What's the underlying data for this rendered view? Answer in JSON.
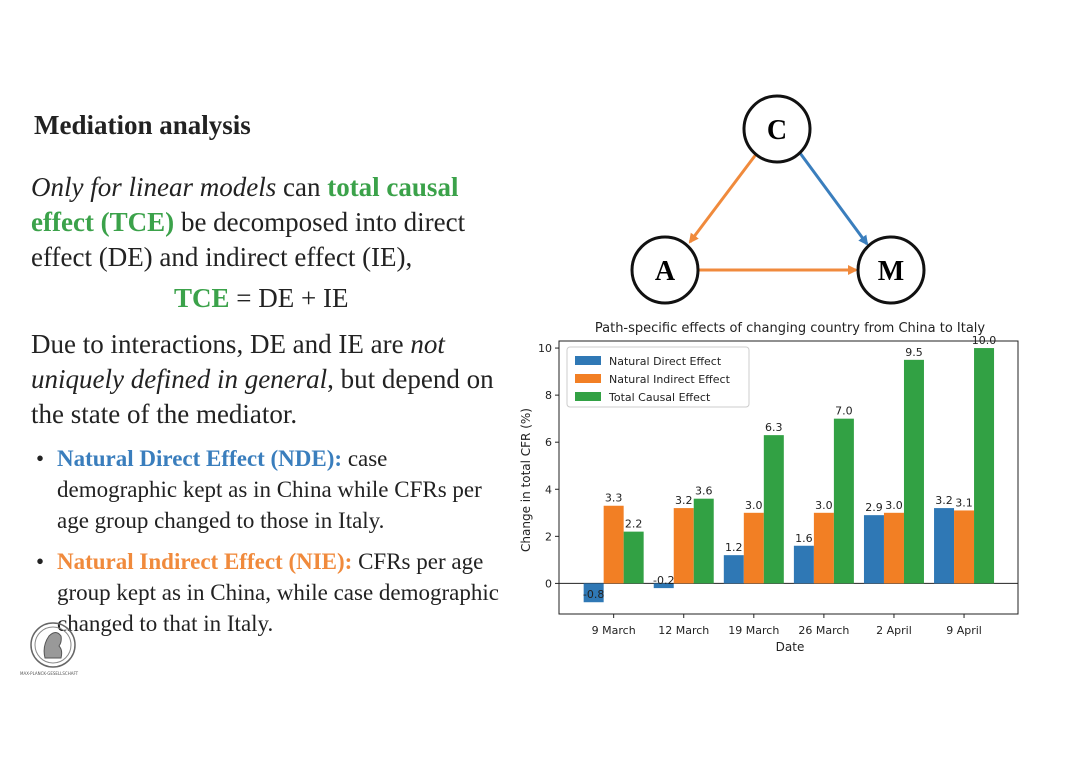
{
  "slide": {
    "title": "Mediation analysis",
    "intro": {
      "italic": "Only for linear models",
      "t1": " can ",
      "tce_label": "total causal effect (TCE)",
      "t2": " be decomposed into direct effect (DE) and indirect effect (IE),"
    },
    "formula": {
      "lhs": "TCE",
      "rhs": " = DE + IE"
    },
    "para2": {
      "t1": "Due to interactions, DE and IE are ",
      "italic": "not uniquely defined in general",
      "t2": ", but depend on the state of the mediator."
    },
    "bullets": [
      {
        "label": "Natural Direct Effect (NDE):",
        "text": " case demographic kept as in China while CFRs per age group changed to those in Italy."
      },
      {
        "label": "Natural Indirect Effect (NIE):",
        "text": " CFRs per age group kept as in China, while case demographic changed to that in Italy."
      }
    ],
    "bullet_char": "•",
    "logo_caption": "MAX-PLANCK-GESELLSCHAFT"
  },
  "diagram": {
    "nodes": {
      "c": "C",
      "a": "A",
      "m": "M"
    },
    "colors": {
      "orange": "#f08a3c",
      "blue": "#3a7ebd"
    }
  },
  "chart_data": {
    "type": "bar",
    "title": "Path-specific effects of changing country from China to Italy",
    "xlabel": "Date",
    "ylabel": "Change in total CFR (%)",
    "ylim": [
      -1.3,
      10.3
    ],
    "yticks": [
      0,
      2,
      4,
      6,
      8,
      10
    ],
    "categories": [
      "9 March",
      "12 March",
      "19 March",
      "26 March",
      "2 April",
      "9 April"
    ],
    "series": [
      {
        "name": "Natural Direct Effect",
        "color": "#2f78b5",
        "values": [
          -0.8,
          -0.2,
          1.2,
          1.6,
          2.9,
          3.2
        ],
        "labels": [
          "-0.8",
          "-0.2",
          "1.2",
          "1.6",
          "2.9",
          "3.2"
        ]
      },
      {
        "name": "Natural Indirect Effect",
        "color": "#f27f24",
        "values": [
          3.3,
          3.2,
          3.0,
          3.0,
          3.0,
          3.1
        ],
        "labels": [
          "3.3",
          "3.2",
          "3.0",
          "3.0",
          "3.0",
          "3.1"
        ]
      },
      {
        "name": "Total Causal Effect",
        "color": "#32a144",
        "values": [
          2.2,
          3.6,
          6.3,
          7.0,
          9.5,
          10.0
        ],
        "labels": [
          "2.2",
          "3.6",
          "6.3",
          "7.0",
          "9.5",
          "10.0"
        ]
      }
    ],
    "legend_position": "top-left"
  }
}
